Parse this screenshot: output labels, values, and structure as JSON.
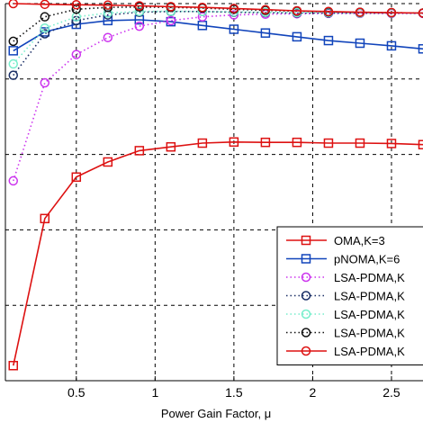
{
  "chart_data": {
    "type": "line",
    "title": "",
    "xlabel": "Power Gain Factor, μ",
    "ylabel": "",
    "xlim": [
      0.05,
      2.7
    ],
    "ylim": [
      0,
      1
    ],
    "xticks": [
      0.5,
      1,
      1.5,
      2,
      2.5
    ],
    "xtick_labels": [
      "0.5",
      "1",
      "1.5",
      "2",
      "2.5"
    ],
    "yticks": [
      0.2,
      0.4,
      0.6,
      0.8,
      1.0
    ],
    "grid": true,
    "legend_position": "bottom-right",
    "x": [
      0.1,
      0.3,
      0.5,
      0.7,
      0.9,
      1.1,
      1.3,
      1.5,
      1.7,
      1.9,
      2.1,
      2.3,
      2.5,
      2.7
    ],
    "series": [
      {
        "name": "OMA,K=3",
        "color": "#dd1111",
        "marker": "square",
        "line": "solid",
        "values": [
          0.04,
          0.43,
          0.54,
          0.58,
          0.61,
          0.62,
          0.63,
          0.633,
          0.632,
          0.632,
          0.63,
          0.63,
          0.629,
          0.626
        ]
      },
      {
        "name": "pNOMA,K=6",
        "color": "#1144bb",
        "marker": "square",
        "line": "solid",
        "values": [
          0.875,
          0.925,
          0.945,
          0.955,
          0.957,
          0.952,
          0.942,
          0.932,
          0.922,
          0.912,
          0.902,
          0.895,
          0.888,
          0.88
        ]
      },
      {
        "name": "LSA-PDMA,K",
        "color": "#cc33ee",
        "marker": "circle",
        "line": "dotted",
        "values": [
          0.53,
          0.79,
          0.865,
          0.91,
          0.94,
          0.955,
          0.965,
          0.97,
          0.972,
          0.973,
          0.974,
          0.974,
          0.974,
          0.974
        ]
      },
      {
        "name": "LSA-PDMA,K",
        "color": "#1a2f66",
        "marker": "circle",
        "line": "dotted",
        "values": [
          0.81,
          0.92,
          0.955,
          0.97,
          0.977,
          0.979,
          0.979,
          0.977,
          0.976,
          0.975,
          0.975,
          0.975,
          0.975,
          0.975
        ]
      },
      {
        "name": "LSA-PDMA,K",
        "color": "#77eecc",
        "marker": "circle",
        "line": "dotted",
        "values": [
          0.84,
          0.935,
          0.965,
          0.975,
          0.979,
          0.98,
          0.979,
          0.978,
          0.977,
          0.976,
          0.976,
          0.975,
          0.975,
          0.975
        ]
      },
      {
        "name": "LSA-PDMA,K",
        "color": "#111111",
        "marker": "circle",
        "line": "dotted",
        "values": [
          0.9,
          0.965,
          0.985,
          0.99,
          0.991,
          0.99,
          0.988,
          0.985,
          0.982,
          0.98,
          0.978,
          0.977,
          0.976,
          0.975
        ]
      },
      {
        "name": "LSA-PDMA,K",
        "color": "#dd1111",
        "marker": "circle",
        "line": "solid",
        "values": [
          1.0,
          0.998,
          0.997,
          0.996,
          0.994,
          0.992,
          0.99,
          0.987,
          0.984,
          0.981,
          0.979,
          0.977,
          0.976,
          0.975
        ]
      }
    ]
  }
}
